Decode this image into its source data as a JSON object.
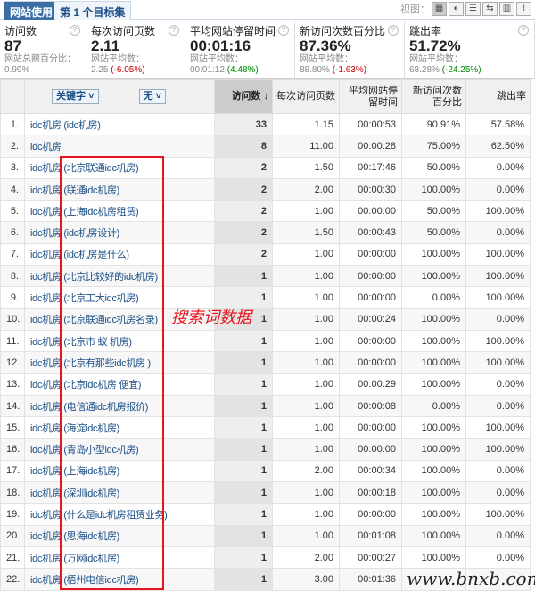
{
  "tabs": {
    "active": "网站使用",
    "other": "第 1 个目标集",
    "views_label": "视图："
  },
  "view_icons": [
    "table-icon",
    "pie-icon",
    "bar-icon",
    "compare-icon",
    "pivot-icon",
    "sparkline-icon"
  ],
  "metrics": [
    {
      "label": "访问数",
      "value": "87",
      "sub_label": "网站总额百分比：",
      "sub_value": "0.99%",
      "change": ""
    },
    {
      "label": "每次访问页数",
      "value": "2.11",
      "sub_label": "网站平均数：",
      "sub_value": "2.25",
      "change": "(-6.05%)",
      "trend": "neg"
    },
    {
      "label": "平均网站停留时间",
      "value": "00:01:16",
      "sub_label": "网站平均数：",
      "sub_value": "00:01:12",
      "change": "(4.48%)",
      "trend": "pos"
    },
    {
      "label": "新访问次数百分比",
      "value": "87.36%",
      "sub_label": "网站平均数：",
      "sub_value": "88.80%",
      "change": "(-1.63%)",
      "trend": "neg"
    },
    {
      "label": "跳出率",
      "value": "51.72%",
      "sub_label": "网站平均数：",
      "sub_value": "68.28%",
      "change": "(-24.25%)",
      "trend": "pos"
    }
  ],
  "table": {
    "dimension1": "关键字",
    "dimension2": "无",
    "headers": [
      "访问数 ↓",
      "每次访问页数",
      "平均网站停留时间",
      "新访问次数百分比",
      "跳出率"
    ],
    "rows": [
      [
        "1.",
        "idc机房 (idc机房)",
        "33",
        "1.15",
        "00:00:53",
        "90.91%",
        "57.58%"
      ],
      [
        "2.",
        "idc机房",
        "8",
        "11.00",
        "00:00:28",
        "75.00%",
        "62.50%"
      ],
      [
        "3.",
        "idc机房 (北京联通idc机房)",
        "2",
        "1.50",
        "00:17:46",
        "50.00%",
        "0.00%"
      ],
      [
        "4.",
        "idc机房 (联通idc机房)",
        "2",
        "2.00",
        "00:00:30",
        "100.00%",
        "0.00%"
      ],
      [
        "5.",
        "idc机房 (上海idc机房租赁)",
        "2",
        "1.00",
        "00:00:00",
        "50.00%",
        "100.00%"
      ],
      [
        "6.",
        "idc机房 (idc机房设计)",
        "2",
        "1.50",
        "00:00:43",
        "50.00%",
        "0.00%"
      ],
      [
        "7.",
        "idc机房 (idc机房是什么)",
        "2",
        "1.00",
        "00:00:00",
        "100.00%",
        "100.00%"
      ],
      [
        "8.",
        "idc机房 (北京比较好的idc机房)",
        "1",
        "1.00",
        "00:00:00",
        "100.00%",
        "100.00%"
      ],
      [
        "9.",
        "idc机房 (北京工大idc机房)",
        "1",
        "1.00",
        "00:00:00",
        "0.00%",
        "100.00%"
      ],
      [
        "10.",
        "idc机房 (北京联通idc机房名录)",
        "1",
        "1.00",
        "00:00:24",
        "100.00%",
        "0.00%"
      ],
      [
        "11.",
        "idc机房 (北京市 蚁 机房)",
        "1",
        "1.00",
        "00:00:00",
        "100.00%",
        "100.00%"
      ],
      [
        "12.",
        "idc机房 (北京有那些idc机房 )",
        "1",
        "1.00",
        "00:00:00",
        "100.00%",
        "100.00%"
      ],
      [
        "13.",
        "idc机房 (北京idc机房 便宜)",
        "1",
        "1.00",
        "00:00:29",
        "100.00%",
        "0.00%"
      ],
      [
        "14.",
        "idc机房 (电信通idc机房报价)",
        "1",
        "1.00",
        "00:00:08",
        "0.00%",
        "0.00%"
      ],
      [
        "15.",
        "idc机房 (海淀idc机房)",
        "1",
        "1.00",
        "00:00:00",
        "100.00%",
        "100.00%"
      ],
      [
        "16.",
        "idc机房 (青岛小型idc机房)",
        "1",
        "1.00",
        "00:00:00",
        "100.00%",
        "100.00%"
      ],
      [
        "17.",
        "idc机房 (上海idc机房)",
        "1",
        "2.00",
        "00:00:34",
        "100.00%",
        "0.00%"
      ],
      [
        "18.",
        "idc机房 (深圳idc机房)",
        "1",
        "1.00",
        "00:00:18",
        "100.00%",
        "0.00%"
      ],
      [
        "19.",
        "idc机房 (什么是idc机房租赁业务)",
        "1",
        "1.00",
        "00:00:00",
        "100.00%",
        "100.00%"
      ],
      [
        "20.",
        "idc机房 (思海idc机房)",
        "1",
        "1.00",
        "00:01:08",
        "100.00%",
        "0.00%"
      ],
      [
        "21.",
        "idc机房 (万网idc机房)",
        "1",
        "2.00",
        "00:00:27",
        "100.00%",
        "0.00%"
      ],
      [
        "22.",
        "idc机房 (梧州电信idc机房)",
        "1",
        "3.00",
        "00:01:36",
        "",
        ""
      ]
    ]
  },
  "annotation": "搜索词数据",
  "watermark": "www.bnxb.com"
}
